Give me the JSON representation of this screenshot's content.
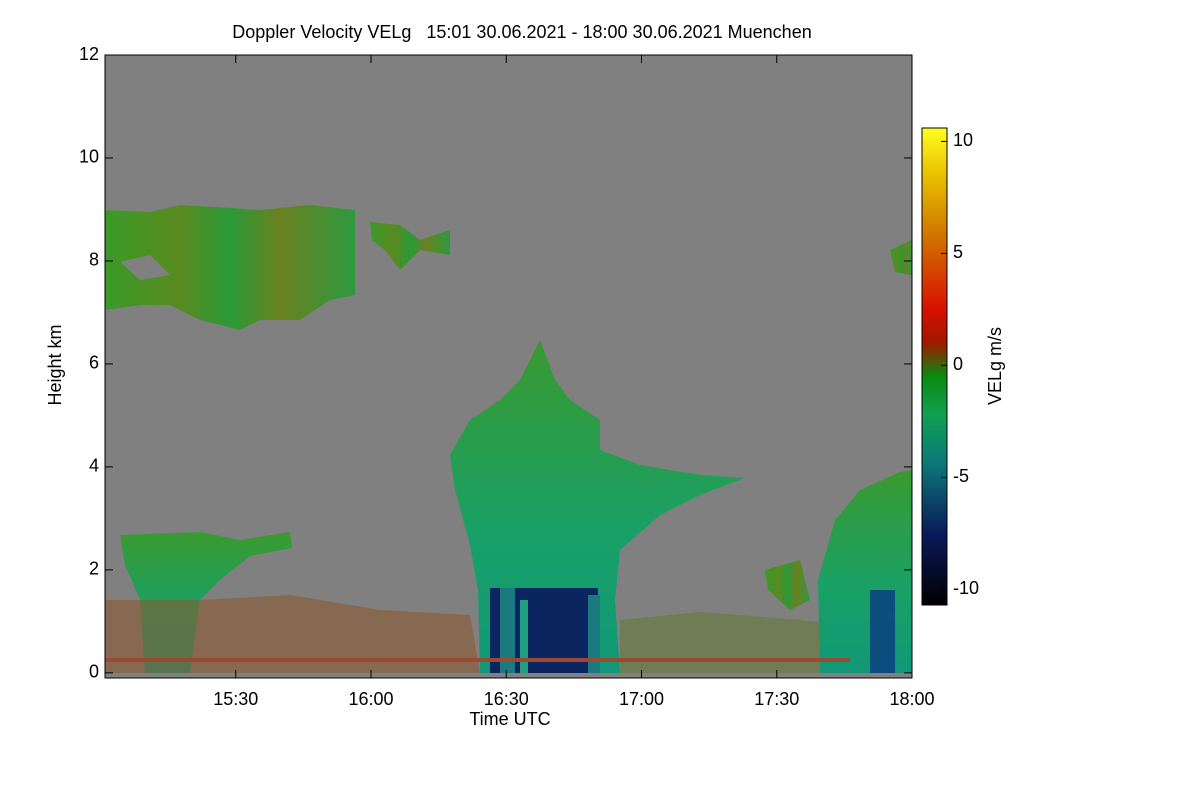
{
  "chart_data": {
    "type": "heatmap",
    "title": "Doppler Velocity VELg   15:01 30.06.2021 - 18:00 30.06.2021 Muenchen",
    "xlabel": "Time UTC",
    "ylabel": "Height km",
    "xlim": [
      901,
      1080
    ],
    "xticks": [
      {
        "value": 930,
        "label": "15:30"
      },
      {
        "value": 960,
        "label": "16:00"
      },
      {
        "value": 990,
        "label": "16:30"
      },
      {
        "value": 1020,
        "label": "17:00"
      },
      {
        "value": 1050,
        "label": "17:30"
      },
      {
        "value": 1080,
        "label": "18:00"
      }
    ],
    "ylim": [
      -0.1,
      12
    ],
    "yticks": [
      0,
      2,
      4,
      6,
      8,
      10,
      12
    ],
    "colorbar": {
      "label": "VELg m/s",
      "lim": [
        -10.7,
        10.6
      ],
      "ticks": [
        -10,
        -5,
        0,
        5,
        10
      ]
    }
  }
}
